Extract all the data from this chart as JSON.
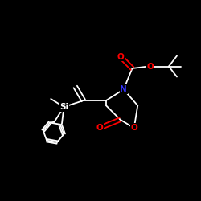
{
  "bg_color": "#000000",
  "bond_color": "#ffffff",
  "atom_colors": {
    "O": "#ff0000",
    "N": "#3333ff",
    "Si": "#ffffff",
    "C": "#ffffff"
  },
  "figsize": [
    2.5,
    2.5
  ],
  "dpi": 100,
  "lw": 1.3
}
